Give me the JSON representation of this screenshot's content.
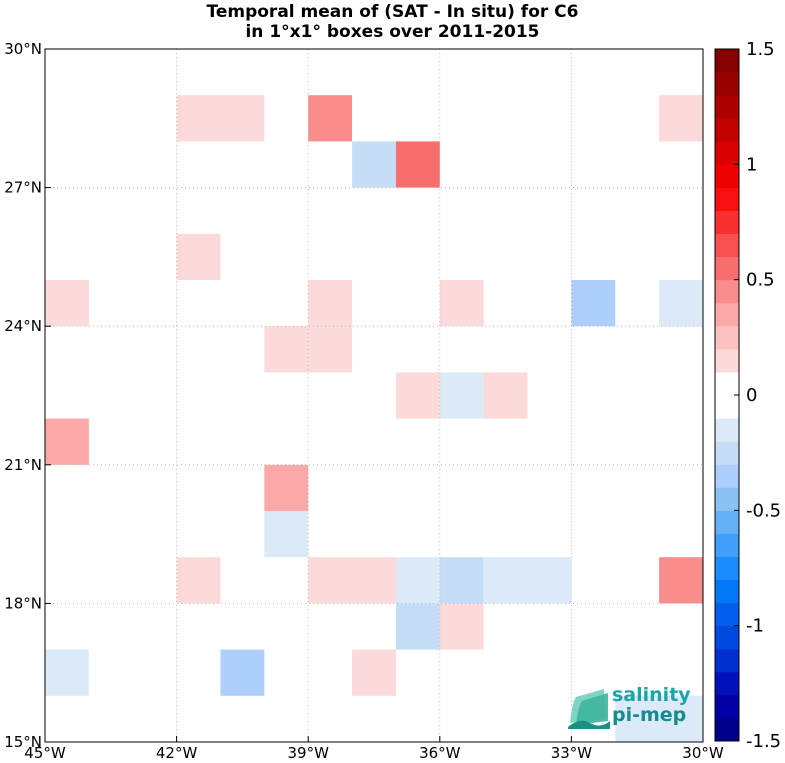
{
  "title": {
    "line1": "Temporal mean of (SAT - In situ) for C6",
    "line2": "in 1°x1° boxes over 2011-2015"
  },
  "map": {
    "lon_range": [
      -45,
      -30
    ],
    "lat_range": [
      15,
      30
    ],
    "x_ticks": [
      {
        "lon": -45,
        "label": "45°W"
      },
      {
        "lon": -42,
        "label": "42°W"
      },
      {
        "lon": -39,
        "label": "39°W"
      },
      {
        "lon": -36,
        "label": "36°W"
      },
      {
        "lon": -33,
        "label": "33°W"
      },
      {
        "lon": -30,
        "label": "30°W"
      }
    ],
    "y_ticks": [
      {
        "lat": 15,
        "label": "15°N"
      },
      {
        "lat": 18,
        "label": "18°N"
      },
      {
        "lat": 21,
        "label": "21°N"
      },
      {
        "lat": 24,
        "label": "24°N"
      },
      {
        "lat": 27,
        "label": "27°N"
      },
      {
        "lat": 30,
        "label": "30°N"
      }
    ],
    "grid": "dotted",
    "cells": [
      {
        "lon0": -42,
        "lon1": -40,
        "lat0": 28,
        "lat1": 29,
        "value": 0.15
      },
      {
        "lon0": -39,
        "lon1": -38,
        "lat0": 28,
        "lat1": 29,
        "value": 0.45
      },
      {
        "lon0": -31,
        "lon1": -30,
        "lat0": 28,
        "lat1": 29,
        "value": 0.15
      },
      {
        "lon0": -38,
        "lon1": -37,
        "lat0": 27,
        "lat1": 28,
        "value": -0.25
      },
      {
        "lon0": -37,
        "lon1": -36,
        "lat0": 27,
        "lat1": 28,
        "value": 0.5
      },
      {
        "lon0": -42,
        "lon1": -41,
        "lat0": 25,
        "lat1": 26,
        "value": 0.15
      },
      {
        "lon0": -45,
        "lon1": -44,
        "lat0": 24,
        "lat1": 25,
        "value": 0.15
      },
      {
        "lon0": -39,
        "lon1": -38,
        "lat0": 24,
        "lat1": 25,
        "value": 0.15
      },
      {
        "lon0": -36,
        "lon1": -35,
        "lat0": 24,
        "lat1": 25,
        "value": 0.15
      },
      {
        "lon0": -33,
        "lon1": -32,
        "lat0": 24,
        "lat1": 25,
        "value": -0.4
      },
      {
        "lon0": -31,
        "lon1": -30,
        "lat0": 24,
        "lat1": 25,
        "value": -0.15
      },
      {
        "lon0": -40,
        "lon1": -38,
        "lat0": 23,
        "lat1": 24,
        "value": 0.15
      },
      {
        "lon0": -37,
        "lon1": -36,
        "lat0": 22,
        "lat1": 23,
        "value": 0.15
      },
      {
        "lon0": -36,
        "lon1": -35,
        "lat0": 22,
        "lat1": 23,
        "value": -0.15
      },
      {
        "lon0": -35,
        "lon1": -34,
        "lat0": 22,
        "lat1": 23,
        "value": 0.15
      },
      {
        "lon0": -45,
        "lon1": -44,
        "lat0": 21,
        "lat1": 22,
        "value": 0.3
      },
      {
        "lon0": -40,
        "lon1": -39,
        "lat0": 20,
        "lat1": 21,
        "value": 0.3
      },
      {
        "lon0": -40,
        "lon1": -39,
        "lat0": 19,
        "lat1": 20,
        "value": -0.15
      },
      {
        "lon0": -42,
        "lon1": -41,
        "lat0": 18,
        "lat1": 19,
        "value": 0.15
      },
      {
        "lon0": -39,
        "lon1": -37,
        "lat0": 18,
        "lat1": 19,
        "value": 0.15
      },
      {
        "lon0": -37,
        "lon1": -36,
        "lat0": 18,
        "lat1": 19,
        "value": -0.15
      },
      {
        "lon0": -36,
        "lon1": -35,
        "lat0": 18,
        "lat1": 19,
        "value": -0.25
      },
      {
        "lon0": -35,
        "lon1": -33,
        "lat0": 18,
        "lat1": 19,
        "value": -0.15
      },
      {
        "lon0": -31,
        "lon1": -30,
        "lat0": 18,
        "lat1": 19,
        "value": 0.45
      },
      {
        "lon0": -37,
        "lon1": -36,
        "lat0": 17,
        "lat1": 18,
        "value": -0.25
      },
      {
        "lon0": -36,
        "lon1": -35,
        "lat0": 17,
        "lat1": 18,
        "value": 0.15
      },
      {
        "lon0": -45,
        "lon1": -44,
        "lat0": 16,
        "lat1": 17,
        "value": -0.15
      },
      {
        "lon0": -41,
        "lon1": -40,
        "lat0": 16,
        "lat1": 17,
        "value": -0.35
      },
      {
        "lon0": -38,
        "lon1": -37,
        "lat0": 16,
        "lat1": 17,
        "value": 0.15
      },
      {
        "lon0": -32,
        "lon1": -30,
        "lat0": 15,
        "lat1": 16,
        "value": -0.15
      }
    ]
  },
  "colorbar": {
    "range": [
      -1.5,
      1.5
    ],
    "ticks": [
      {
        "value": 1.5,
        "label": "1.5"
      },
      {
        "value": 1,
        "label": "1"
      },
      {
        "value": 0.5,
        "label": "0.5"
      },
      {
        "value": 0,
        "label": "0"
      },
      {
        "value": -0.5,
        "label": "-0.5"
      },
      {
        "value": -1,
        "label": "-1"
      },
      {
        "value": -1.5,
        "label": "-1.5"
      }
    ],
    "colors": [
      "#00008a",
      "#0000a4",
      "#0013bb",
      "#0030cf",
      "#0049df",
      "#0060ed",
      "#0078f7",
      "#1a8cfb",
      "#3f9ff9",
      "#64b0f7",
      "#8ac2f6",
      "#adcff9",
      "#c6ddf8",
      "#dceaf8",
      "#ffffff",
      "#ffffff",
      "#fcdada",
      "#fcc2c2",
      "#fba8a8",
      "#fa8c8c",
      "#f86e6e",
      "#f85050",
      "#f83030",
      "#f81010",
      "#ee0000",
      "#d80000",
      "#c20000",
      "#ad0000",
      "#990000",
      "#850000"
    ]
  },
  "logo": {
    "line1": "salinity",
    "line2": "pi-mep"
  }
}
